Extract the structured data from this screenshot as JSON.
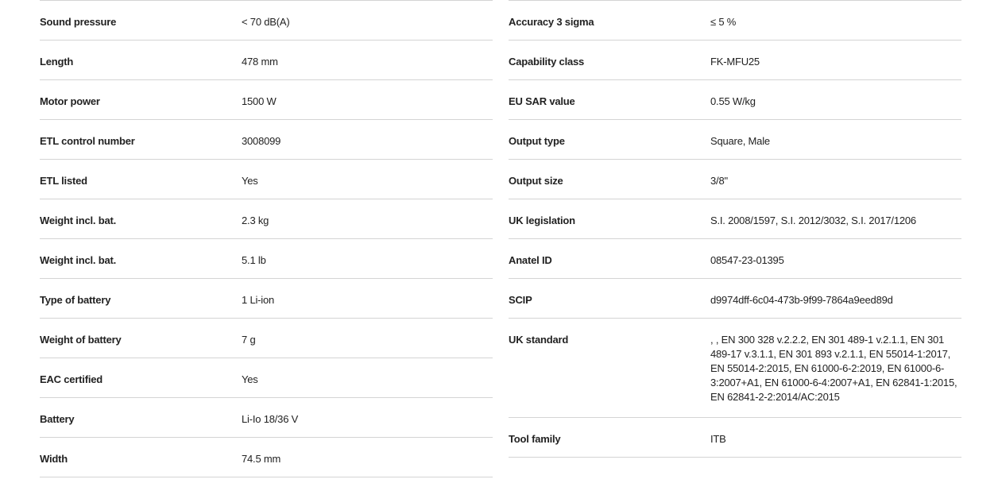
{
  "left": [
    {
      "label": "Sound pressure",
      "value": "< 70 dB(A)"
    },
    {
      "label": "Length",
      "value": "478 mm"
    },
    {
      "label": "Motor power",
      "value": "1500 W"
    },
    {
      "label": "ETL control number",
      "value": "3008099"
    },
    {
      "label": "ETL listed",
      "value": "Yes"
    },
    {
      "label": "Weight incl. bat.",
      "value": "2.3 kg"
    },
    {
      "label": "Weight incl. bat.",
      "value": "5.1 lb"
    },
    {
      "label": "Type of battery",
      "value": "1 Li-ion"
    },
    {
      "label": "Weight of battery",
      "value": "7 g"
    },
    {
      "label": "EAC certified",
      "value": "Yes"
    },
    {
      "label": "Battery",
      "value": "Li-Io 18/36 V"
    },
    {
      "label": "Width",
      "value": "74.5 mm"
    }
  ],
  "right": [
    {
      "label": "Accuracy 3 sigma",
      "value": "≤ 5 %"
    },
    {
      "label": "Capability class",
      "value": "FK-MFU25"
    },
    {
      "label": "EU SAR value",
      "value": "0.55 W/kg"
    },
    {
      "label": "Output type",
      "value": "Square, Male"
    },
    {
      "label": "Output size",
      "value": "3/8\""
    },
    {
      "label": "UK legislation",
      "value": "S.I. 2008/1597, S.I. 2012/3032, S.I. 2017/1206"
    },
    {
      "label": "Anatel ID",
      "value": "08547-23-01395"
    },
    {
      "label": "SCIP",
      "value": "d9974dff-6c04-473b-9f99-7864a9eed89d"
    },
    {
      "label": "UK standard",
      "value": ", , EN 300 328 v.2.2.2, EN 301 489-1 v.2.1.1, EN 301 489-17 v.3.1.1, EN 301 893 v.2.1.1, EN 55014-1:2017, EN 55014-2:2015, EN 61000-6-2:2019, EN 61000-6-3:2007+A1, EN 61000-6-4:2007+A1, EN 62841-1:2015, EN 62841-2-2:2014/AC:2015"
    },
    {
      "label": "Tool family",
      "value": "ITB"
    }
  ]
}
